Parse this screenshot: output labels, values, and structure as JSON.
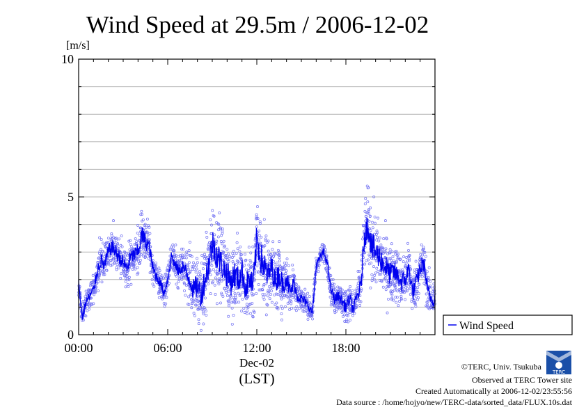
{
  "chart_data": {
    "type": "scatter",
    "title": "Wind Speed at 29.5m / 2006-12-02",
    "ylabel": "[m/s]",
    "xlabel_date": "Dec-02",
    "xlabel_zone": "(LST)",
    "ylim": [
      0,
      10
    ],
    "xlim_hours": [
      0,
      24
    ],
    "y_ticks": [
      "0",
      "5",
      "10"
    ],
    "x_ticks": [
      "00:00",
      "06:00",
      "12:00",
      "18:00"
    ],
    "grid": true,
    "legend_position": "right-bottom",
    "series": [
      {
        "name": "Wind Speed",
        "color": "#0000ee",
        "scatter_color": "#6f6ff2",
        "x": [
          0.0,
          0.25,
          0.5,
          0.75,
          1.0,
          1.25,
          1.5,
          1.75,
          2.0,
          2.25,
          2.5,
          2.75,
          3.0,
          3.25,
          3.5,
          3.75,
          4.0,
          4.25,
          4.5,
          4.75,
          5.0,
          5.25,
          5.5,
          5.75,
          6.0,
          6.25,
          6.5,
          6.75,
          7.0,
          7.25,
          7.5,
          7.75,
          8.0,
          8.25,
          8.5,
          8.75,
          9.0,
          9.25,
          9.5,
          9.75,
          10.0,
          10.25,
          10.5,
          10.75,
          11.0,
          11.25,
          11.5,
          11.75,
          12.0,
          12.25,
          12.5,
          12.75,
          13.0,
          13.25,
          13.5,
          13.75,
          14.0,
          14.25,
          14.5,
          14.75,
          15.0,
          15.25,
          15.5,
          15.75,
          16.0,
          16.25,
          16.5,
          16.75,
          17.0,
          17.25,
          17.5,
          17.75,
          18.0,
          18.25,
          18.5,
          18.75,
          19.0,
          19.25,
          19.5,
          19.75,
          20.0,
          20.25,
          20.5,
          20.75,
          21.0,
          21.25,
          21.5,
          21.75,
          22.0,
          22.25,
          22.5,
          22.75,
          23.0,
          23.25,
          23.5,
          23.75
        ],
        "y": [
          1.9,
          0.6,
          1.2,
          1.4,
          1.6,
          2.3,
          2.7,
          2.5,
          3.0,
          3.2,
          3.0,
          2.8,
          2.6,
          2.4,
          2.8,
          2.9,
          3.0,
          3.6,
          3.4,
          3.2,
          2.4,
          2.1,
          1.9,
          1.5,
          2.0,
          2.9,
          2.5,
          2.3,
          2.5,
          2.2,
          2.0,
          1.6,
          1.8,
          1.4,
          2.0,
          2.5,
          3.3,
          3.0,
          2.7,
          2.4,
          2.2,
          1.9,
          2.2,
          2.0,
          2.3,
          1.7,
          2.0,
          1.7,
          3.5,
          2.8,
          2.5,
          2.1,
          2.5,
          1.9,
          2.2,
          1.8,
          2.1,
          1.5,
          1.9,
          1.4,
          1.3,
          1.2,
          1.0,
          0.8,
          2.5,
          2.8,
          3.0,
          2.6,
          1.6,
          1.3,
          1.4,
          1.2,
          1.0,
          1.3,
          0.9,
          1.4,
          1.7,
          3.6,
          4.0,
          3.2,
          3.0,
          2.8,
          2.6,
          2.4,
          2.2,
          2.3,
          2.1,
          1.9,
          2.0,
          2.4,
          1.5,
          1.9,
          2.4,
          2.6,
          1.6,
          1.3
        ],
        "spread": [
          0.3,
          0.3,
          0.4,
          0.4,
          0.5,
          0.5,
          0.6,
          0.6,
          0.6,
          0.6,
          0.6,
          0.6,
          0.6,
          0.6,
          0.6,
          0.6,
          0.7,
          0.8,
          0.7,
          0.6,
          0.5,
          0.5,
          0.4,
          0.4,
          0.4,
          0.4,
          0.5,
          0.5,
          0.6,
          0.7,
          0.8,
          0.9,
          1.0,
          1.0,
          1.1,
          1.2,
          1.3,
          1.3,
          1.2,
          1.1,
          1.1,
          1.1,
          1.1,
          1.1,
          1.1,
          1.1,
          1.1,
          1.1,
          1.3,
          1.3,
          1.2,
          1.1,
          1.0,
          1.0,
          1.0,
          0.9,
          0.8,
          0.7,
          0.6,
          0.5,
          0.4,
          0.4,
          0.3,
          0.3,
          0.3,
          0.3,
          0.3,
          0.3,
          0.4,
          0.5,
          0.4,
          0.5,
          0.5,
          0.5,
          0.5,
          0.5,
          0.7,
          1.0,
          1.2,
          1.2,
          1.1,
          1.0,
          1.0,
          1.0,
          0.9,
          0.9,
          0.8,
          0.8,
          0.8,
          0.8,
          0.7,
          0.7,
          0.7,
          0.7,
          0.6,
          0.6
        ]
      }
    ]
  },
  "credits": {
    "copyright": "©TERC, Univ. Tsukuba",
    "site": "Observed at TERC Tower site",
    "created": "Created Automatically at 2006-12-02/23:55:56",
    "source": "Data source : /home/hojyo/new/TERC-data/sorted_data/FLUX.10s.dat",
    "logo_text": "TERC"
  }
}
